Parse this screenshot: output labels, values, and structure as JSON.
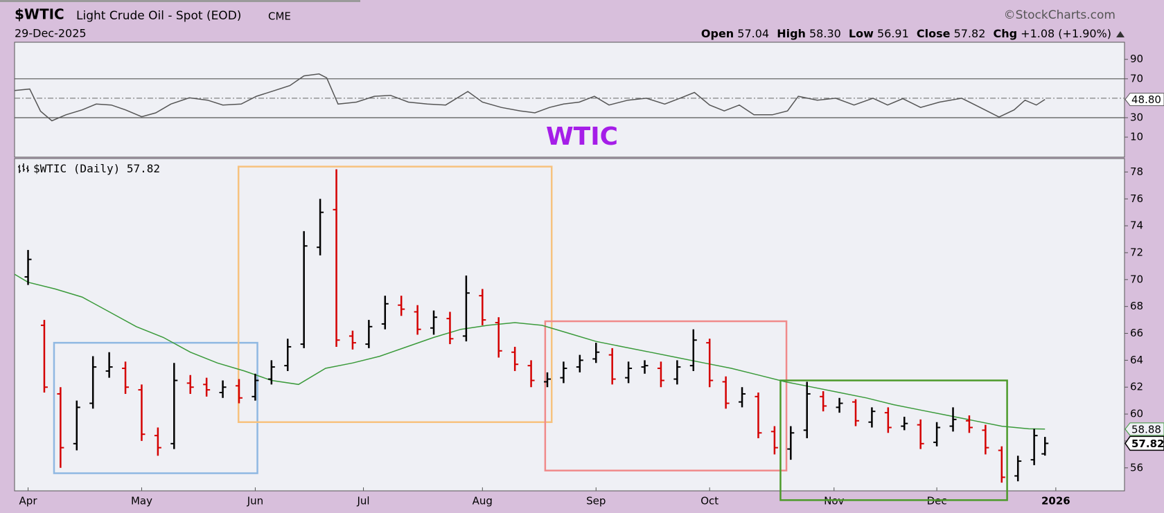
{
  "header": {
    "symbol": "$WTIC",
    "name": "Light Crude Oil - Spot (EOD)",
    "exchange": "CME",
    "copyright": "©StockCharts.com",
    "date": "29-Dec-2025",
    "open_label": "Open",
    "high_label": "High",
    "low_label": "Low",
    "close_label": "Close",
    "chg_label": "Chg",
    "quote": {
      "open": "57.04",
      "high": "58.30",
      "low": "56.91",
      "close": "57.82",
      "chg": "+1.08 (+1.90%)"
    }
  },
  "chart_data": [
    {
      "type": "line",
      "label": "WTIC",
      "color": "#555555",
      "x": [
        -2.5,
        0.3,
        2.3,
        4.4,
        7,
        10,
        12.6,
        15.4,
        18,
        21,
        23.6,
        26.4,
        29.8,
        33.2,
        36,
        39.4,
        42.2,
        45.6,
        48.4,
        51,
        53.8,
        55.2,
        57.3,
        60.7,
        64,
        67,
        70.3,
        73.8,
        77.2,
        81.3,
        84,
        87.5,
        91,
        93.7,
        96.4,
        99,
        101.9,
        104.7,
        107.4,
        110.9,
        114.3,
        117.7,
        120.5,
        123.2,
        126,
        128.7,
        131.5,
        134.2,
        137.6,
        140.4,
        142.4,
        145.9,
        149.3,
        152.7,
        156.2,
        158.9,
        161.7,
        165,
        168.5,
        172.6,
        176,
        179.5,
        182.3,
        184.3,
        186.4,
        188
      ],
      "values": [
        58,
        59.5,
        36.7,
        26.8,
        33,
        38,
        44,
        43,
        38,
        31,
        35,
        44,
        50.4,
        48,
        43,
        44,
        52,
        58,
        63,
        73,
        75,
        71,
        44,
        46,
        52,
        53,
        46,
        44,
        43,
        57,
        46,
        40.5,
        37,
        35,
        40.5,
        44,
        46,
        52,
        43,
        48,
        50,
        44,
        50,
        56,
        43,
        37,
        43,
        33,
        33,
        37,
        52,
        48,
        50,
        43,
        50,
        43,
        49.6,
        40.5,
        46,
        50,
        40.5,
        30.6,
        38,
        48,
        43,
        48.8
      ],
      "xlim": [
        -2.5,
        202.7
      ],
      "ylim": [
        -10.6,
        107.6
      ],
      "yticks": [
        10,
        30,
        70,
        90
      ],
      "reference_lines": [
        30,
        50,
        70
      ],
      "last_value": {
        "value": 48.8,
        "label": "48.80"
      }
    },
    {
      "type": "ohlc",
      "legend": "$WTIC (Daily)",
      "up_color": "#000000",
      "down_color": "#d40000",
      "x": [
        0,
        3,
        6,
        9,
        12,
        15,
        18,
        21,
        24,
        27,
        30,
        33,
        36,
        39,
        42,
        45,
        48,
        51,
        54,
        57,
        60,
        63,
        66,
        69,
        72,
        75,
        78,
        81,
        84,
        87,
        90,
        93,
        96,
        99,
        102,
        105,
        108,
        111,
        114,
        117,
        120,
        123,
        126,
        129,
        132,
        135,
        138,
        141,
        144,
        147,
        150,
        153,
        156,
        159,
        162,
        165,
        168,
        171,
        174,
        177,
        180,
        183,
        186,
        188
      ],
      "open": [
        70.2,
        66.6,
        61.5,
        57.8,
        60.8,
        63.2,
        63.4,
        61.8,
        58.4,
        57.8,
        62.3,
        62.2,
        61.6,
        62.1,
        61.3,
        62.6,
        63.6,
        65.2,
        72.4,
        75.2,
        65.8,
        65.2,
        66.7,
        68.1,
        67.6,
        66.4,
        67.1,
        65.8,
        68.8,
        66.8,
        64.6,
        63.6,
        62.4,
        62.7,
        63.5,
        64.1,
        64.4,
        62.7,
        63.5,
        63.4,
        62.6,
        63.6,
        65.3,
        62.4,
        60.9,
        61.3,
        58.7,
        57.4,
        58.8,
        61.3,
        60.5,
        60.9,
        59.4,
        60.1,
        59.1,
        59.2,
        57.9,
        59.1,
        59.5,
        58.8,
        57.3,
        55.4,
        56.6,
        57.04
      ],
      "high": [
        72.2,
        67,
        62,
        61,
        64.3,
        64.6,
        63.9,
        62.2,
        59,
        63.8,
        62.9,
        62.7,
        62.5,
        62.6,
        63,
        64,
        65.6,
        73.6,
        76,
        78.2,
        66.2,
        67,
        68.8,
        68.8,
        68.1,
        67.7,
        67.6,
        70.3,
        69.3,
        67.2,
        65,
        64,
        63.1,
        63.9,
        64.4,
        65.3,
        64.9,
        63.9,
        64,
        63.9,
        64,
        66.3,
        65.6,
        62.8,
        62,
        61.6,
        59.1,
        59.1,
        62.4,
        61.7,
        61.2,
        61.1,
        60.5,
        60.5,
        59.8,
        59.6,
        59.4,
        60.5,
        59.9,
        59.2,
        57.6,
        56.9,
        58.9,
        58.3
      ],
      "low": [
        69.6,
        61.6,
        56,
        57.3,
        60.4,
        62.7,
        61.5,
        58,
        56.9,
        57.4,
        61.5,
        61.3,
        61.2,
        60.8,
        61,
        62.2,
        63.2,
        64.9,
        71.8,
        65,
        64.8,
        64.9,
        66.3,
        67.3,
        65.9,
        65.9,
        65.2,
        65.4,
        66.6,
        64.2,
        63.2,
        62,
        62,
        62.3,
        63.1,
        63.8,
        62.2,
        62.3,
        63,
        62,
        62.2,
        63.2,
        62,
        60.4,
        60.5,
        58.2,
        57,
        56.6,
        58.2,
        60.2,
        60.1,
        59.1,
        59,
        58.6,
        58.8,
        57.4,
        57.6,
        58.7,
        58.6,
        57,
        54.9,
        55,
        56.2,
        56.91
      ],
      "close": [
        71.5,
        62,
        57.5,
        60.5,
        63.5,
        63.5,
        62,
        58.5,
        57.5,
        62.5,
        62,
        61.8,
        62,
        61.2,
        62.5,
        63.5,
        65,
        72.5,
        75,
        65.5,
        65.3,
        66.5,
        68.2,
        67.8,
        66.3,
        67.2,
        65.6,
        69,
        67,
        64.7,
        63.7,
        62.5,
        62.6,
        63.4,
        64,
        64.6,
        62.6,
        63.4,
        63.6,
        62.5,
        63.5,
        65.5,
        62.5,
        60.8,
        61.5,
        58.6,
        57.5,
        58.6,
        61.5,
        60.6,
        60.8,
        59.5,
        60.2,
        59,
        59.3,
        57.8,
        59,
        59.6,
        59,
        57.5,
        55.3,
        56.5,
        58.4,
        57.82
      ],
      "ma": {
        "color": "#3a9a3a",
        "x": [
          -2.5,
          0,
          5,
          10,
          15,
          20,
          25,
          30,
          35,
          40,
          45,
          50,
          55,
          60,
          65,
          70,
          75,
          80,
          85,
          90,
          95,
          100,
          105,
          110,
          115,
          120,
          125,
          130,
          135,
          140,
          145,
          150,
          155,
          160,
          165,
          170,
          175,
          180,
          185,
          188
        ],
        "values": [
          70.4,
          69.8,
          69.3,
          68.7,
          67.6,
          66.5,
          65.7,
          64.6,
          63.8,
          63.2,
          62.5,
          62.2,
          63.4,
          63.8,
          64.3,
          65,
          65.7,
          66.3,
          66.6,
          66.8,
          66.6,
          66,
          65.4,
          65,
          64.6,
          64.2,
          63.8,
          63.4,
          62.9,
          62.4,
          62,
          61.6,
          61.2,
          60.7,
          60.3,
          59.9,
          59.5,
          59.1,
          58.9,
          58.88
        ]
      },
      "xlim": [
        -2.5,
        202.7
      ],
      "ylim": [
        54.29,
        79
      ],
      "yticks": [
        56,
        58,
        60,
        62,
        64,
        66,
        68,
        70,
        72,
        74,
        76,
        78
      ],
      "xticks": [
        {
          "value": 0,
          "label": "Apr"
        },
        {
          "value": 21,
          "label": "May"
        },
        {
          "value": 42,
          "label": "Jun"
        },
        {
          "value": 62,
          "label": "Jul"
        },
        {
          "value": 84,
          "label": "Aug"
        },
        {
          "value": 105,
          "label": "Sep"
        },
        {
          "value": 126,
          "label": "Oct"
        },
        {
          "value": 149,
          "label": "Nov"
        },
        {
          "value": 168,
          "label": "Dec"
        },
        {
          "value": 190,
          "label": "2026"
        }
      ],
      "boxes": [
        {
          "x": [
            4.8,
            42.4
          ],
          "y": [
            55.6,
            65.3
          ],
          "color": "#8fb8e2"
        },
        {
          "x": [
            38.9,
            96.8
          ],
          "y": [
            59.4,
            78.4
          ],
          "color": "#f7c27e"
        },
        {
          "x": [
            95.6,
            140.2
          ],
          "y": [
            55.8,
            66.9
          ],
          "color": "#f08a8a"
        },
        {
          "x": [
            139.1,
            181
          ],
          "y": [
            53.6,
            62.5
          ],
          "color": "#4c9a2a"
        }
      ]
    }
  ]
}
